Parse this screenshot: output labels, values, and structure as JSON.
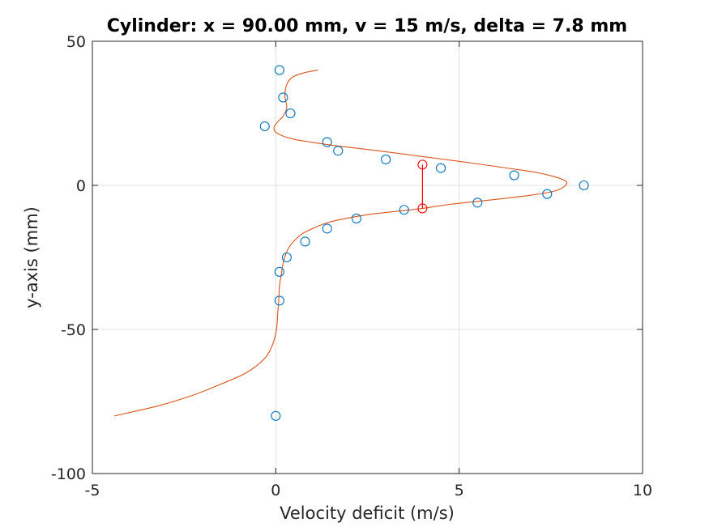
{
  "chart_data": {
    "type": "scatter",
    "title": "Cylinder: x = 90.00 mm, v = 15 m/s, delta = 7.8 mm",
    "xlabel": "Velocity deficit (m/s)",
    "ylabel": "y-axis (mm)",
    "xlim": [
      -5,
      10
    ],
    "ylim": [
      -100,
      50
    ],
    "xticks": [
      -5,
      0,
      5,
      10
    ],
    "xtick_labels": [
      "-5",
      "0",
      "5",
      "10"
    ],
    "yticks": [
      -100,
      -50,
      0,
      50
    ],
    "ytick_labels": [
      "-100",
      "-50",
      "0",
      "50"
    ],
    "grid": true,
    "measured_points": {
      "marker": "open-circle",
      "color": "#0072BD",
      "x": [
        0.1,
        0.2,
        0.4,
        -0.3,
        1.4,
        1.7,
        3.0,
        4.5,
        6.5,
        8.4,
        7.4,
        5.5,
        3.5,
        2.2,
        1.4,
        0.8,
        0.3,
        0.1,
        0.1,
        0.0
      ],
      "y": [
        40,
        30.5,
        25,
        20.5,
        15,
        12,
        9,
        6,
        3.5,
        0,
        -3,
        -6,
        -8.5,
        -11.5,
        -15,
        -19.5,
        -25,
        -30,
        -40,
        -80
      ]
    },
    "fit_curve": {
      "color": "#D95319",
      "x": [
        1.15,
        0.75,
        0.45,
        0.3,
        0.25,
        0.3,
        0.2,
        0.05,
        -0.05,
        0.05,
        0.5,
        1.5,
        2.8,
        4.0,
        5.2,
        6.3,
        7.1,
        7.6,
        7.9,
        7.9,
        7.6,
        6.9,
        5.9,
        4.8,
        4.0,
        3.3,
        2.6,
        1.9,
        1.4,
        1.0,
        0.7,
        0.45,
        0.3,
        0.2,
        0.15,
        0.1,
        0.08,
        0.05,
        0.02,
        -0.08,
        -0.3,
        -0.8,
        -1.5,
        -2.3,
        -3.2,
        -4.4
      ],
      "y": [
        40,
        39,
        37.5,
        35,
        31,
        27,
        24,
        22,
        20,
        18,
        16,
        14,
        12,
        10,
        8,
        6,
        4.5,
        3,
        1.5,
        0,
        -2,
        -3.5,
        -5,
        -6.5,
        -8,
        -9,
        -10,
        -11.5,
        -13,
        -15,
        -17,
        -20,
        -23,
        -27,
        -31,
        -35,
        -40,
        -45,
        -50,
        -55,
        -60,
        -65,
        -69,
        -73,
        -76.5,
        -80
      ]
    },
    "highlight": {
      "color": "#FF0000",
      "x": [
        4.0,
        4.0
      ],
      "y": [
        7.2,
        -8.0
      ]
    }
  }
}
